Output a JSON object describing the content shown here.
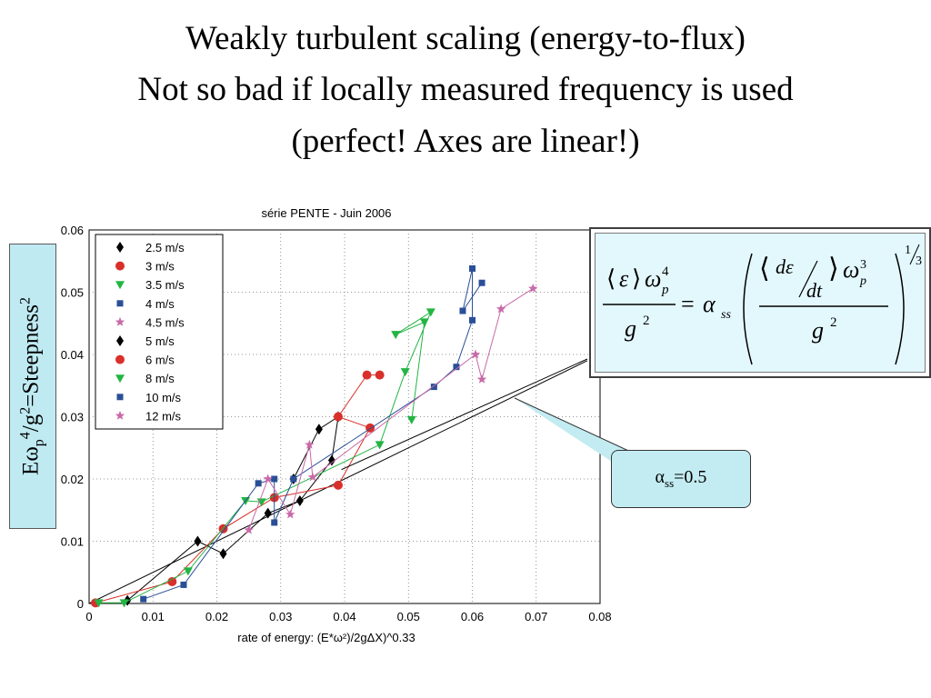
{
  "slide": {
    "title_line1": "Weakly turbulent scaling  (energy-to-flux)",
    "title_line2": "Not so bad if locally measured frequency is used",
    "title_line3": "(perfect! Axes are linear!)"
  },
  "ylabel_box": {
    "text": "Eωp4/g2=Steepness2"
  },
  "callout": {
    "text": "αss=0.5",
    "alpha_value": 0.5
  },
  "equation": {
    "description_hidden": false
  },
  "colors": {
    "black": "#000000",
    "red": "#d9302b",
    "green": "#22b543",
    "blue": "#2a4f97",
    "pink": "#c86aa8",
    "callout_fill": "#c3ecf2",
    "eq_fill": "#e3f8fd"
  },
  "chart_data": {
    "type": "scatter",
    "title": "série PENTE  -  Juin 2006",
    "xlabel": "rate of energy: (E*ω²)/2gΔX)^0.33",
    "xlim": [
      0,
      0.08
    ],
    "ylim": [
      0,
      0.06
    ],
    "xticks": [
      "0",
      "0.01",
      "0.02",
      "0.03",
      "0.04",
      "0.05",
      "0.06",
      "0.07",
      "0.08"
    ],
    "yticks": [
      "0",
      "0.01",
      "0.02",
      "0.03",
      "0.04",
      "0.05",
      "0.06"
    ],
    "grid": true,
    "legend_position": "top-left",
    "series": [
      {
        "name": "2.5 m/s",
        "marker": "diamond",
        "color": "#000000",
        "points": [
          [
            0.006,
            0.0005
          ],
          [
            0.017,
            0.01
          ],
          [
            0.021,
            0.008
          ],
          [
            0.028,
            0.0145
          ],
          [
            0.033,
            0.0165
          ],
          [
            0.038,
            0.023
          ],
          [
            0.039,
            0.03
          ],
          [
            0.036,
            0.028
          ],
          [
            0.032,
            0.02
          ]
        ]
      },
      {
        "name": "3 m/s",
        "marker": "circle",
        "color": "#d9302b",
        "points": [
          [
            0.001,
            0.0001
          ],
          [
            0.013,
            0.0035
          ],
          [
            0.021,
            0.012
          ],
          [
            0.029,
            0.017
          ],
          [
            0.039,
            0.019
          ],
          [
            0.044,
            0.0282
          ],
          [
            0.039,
            0.03
          ],
          [
            0.0435,
            0.0367
          ],
          [
            0.0455,
            0.0367
          ]
        ]
      },
      {
        "name": "3.5 m/s",
        "marker": "triangle-down",
        "color": "#22b543",
        "points": [
          [
            0.0015,
            0.0001
          ],
          [
            0.0055,
            0.0001
          ],
          [
            0.0155,
            0.0052
          ],
          [
            0.0245,
            0.0165
          ],
          [
            0.027,
            0.0163
          ],
          [
            0.0455,
            0.0255
          ],
          [
            0.0495,
            0.0372
          ],
          [
            0.0535,
            0.0468
          ],
          [
            0.048,
            0.0432
          ],
          [
            0.0525,
            0.0452
          ],
          [
            0.0505,
            0.0295
          ]
        ]
      },
      {
        "name": "4 m/s",
        "marker": "square",
        "color": "#2a4f97",
        "points": [
          [
            0.0085,
            0.0007
          ],
          [
            0.0148,
            0.003
          ],
          [
            0.0265,
            0.0193
          ],
          [
            0.029,
            0.02
          ],
          [
            0.029,
            0.013
          ],
          [
            0.032,
            0.02
          ],
          [
            0.054,
            0.0348
          ],
          [
            0.0575,
            0.038
          ],
          [
            0.06,
            0.0455
          ],
          [
            0.06,
            0.0538
          ],
          [
            0.0585,
            0.047
          ],
          [
            0.0615,
            0.0515
          ]
        ]
      },
      {
        "name": "4.5 m/s",
        "marker": "star",
        "color": "#c86aa8",
        "points": [
          [
            0.025,
            0.0118
          ],
          [
            0.028,
            0.02
          ],
          [
            0.0315,
            0.0143
          ],
          [
            0.0345,
            0.0255
          ],
          [
            0.035,
            0.0203
          ],
          [
            0.0605,
            0.04
          ],
          [
            0.0615,
            0.036
          ],
          [
            0.0645,
            0.0473
          ],
          [
            0.0695,
            0.0506
          ]
        ]
      },
      {
        "name": "5 m/s",
        "marker": "diamond",
        "color": "#000000",
        "points": []
      },
      {
        "name": "6 m/s",
        "marker": "circle",
        "color": "#d9302b",
        "points": []
      },
      {
        "name": "8 m/s",
        "marker": "triangle-down",
        "color": "#22b543",
        "points": []
      },
      {
        "name": "10 m/s",
        "marker": "square",
        "color": "#2a4f97",
        "points": []
      },
      {
        "name": "12 m/s",
        "marker": "star",
        "color": "#c86aa8",
        "points": []
      }
    ],
    "fit_line": {
      "slope": 0.5,
      "points": [
        [
          0,
          0
        ],
        [
          0.08,
          0.04
        ]
      ]
    }
  }
}
